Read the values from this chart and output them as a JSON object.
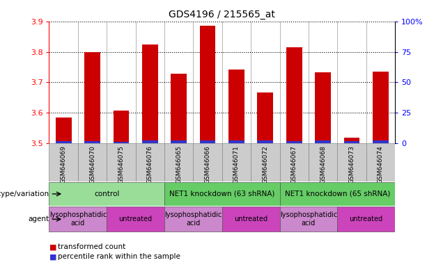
{
  "title": "GDS4196 / 215565_at",
  "samples": [
    "GSM646069",
    "GSM646070",
    "GSM646075",
    "GSM646076",
    "GSM646065",
    "GSM646066",
    "GSM646071",
    "GSM646072",
    "GSM646067",
    "GSM646068",
    "GSM646073",
    "GSM646074"
  ],
  "red_values": [
    3.585,
    3.8,
    3.608,
    3.825,
    3.728,
    3.885,
    3.742,
    3.668,
    3.815,
    3.732,
    3.518,
    3.735
  ],
  "blue_heights": [
    0.008,
    0.008,
    0.006,
    0.01,
    0.01,
    0.01,
    0.01,
    0.01,
    0.008,
    0.01,
    0.008,
    0.01
  ],
  "ymin": 3.5,
  "ymax": 3.9,
  "y_ticks": [
    3.5,
    3.6,
    3.7,
    3.8,
    3.9
  ],
  "right_y_ticks": [
    0,
    25,
    50,
    75,
    100
  ],
  "right_y_tick_labels": [
    "0",
    "25",
    "50",
    "75",
    "100%"
  ],
  "bar_color": "#cc0000",
  "blue_color": "#3333cc",
  "genotype_groups": [
    {
      "label": "control",
      "start": 0,
      "end": 4,
      "color": "#99dd99"
    },
    {
      "label": "NET1 knockdown (63 shRNA)",
      "start": 4,
      "end": 8,
      "color": "#66cc66"
    },
    {
      "label": "NET1 knockdown (65 shRNA)",
      "start": 8,
      "end": 12,
      "color": "#66cc66"
    }
  ],
  "agent_groups": [
    {
      "label": "lysophosphatidic\nacid",
      "start": 0,
      "end": 2,
      "color": "#cc88cc"
    },
    {
      "label": "untreated",
      "start": 2,
      "end": 4,
      "color": "#cc44bb"
    },
    {
      "label": "lysophosphatidic\nacid",
      "start": 4,
      "end": 6,
      "color": "#cc88cc"
    },
    {
      "label": "untreated",
      "start": 6,
      "end": 8,
      "color": "#cc44bb"
    },
    {
      "label": "lysophosphatidic\nacid",
      "start": 8,
      "end": 10,
      "color": "#cc88cc"
    },
    {
      "label": "untreated",
      "start": 10,
      "end": 12,
      "color": "#cc44bb"
    }
  ],
  "sample_bg_color": "#cccccc",
  "legend_red": "transformed count",
  "legend_blue": "percentile rank within the sample",
  "genotype_label": "genotype/variation",
  "agent_label": "agent",
  "bar_width": 0.55
}
